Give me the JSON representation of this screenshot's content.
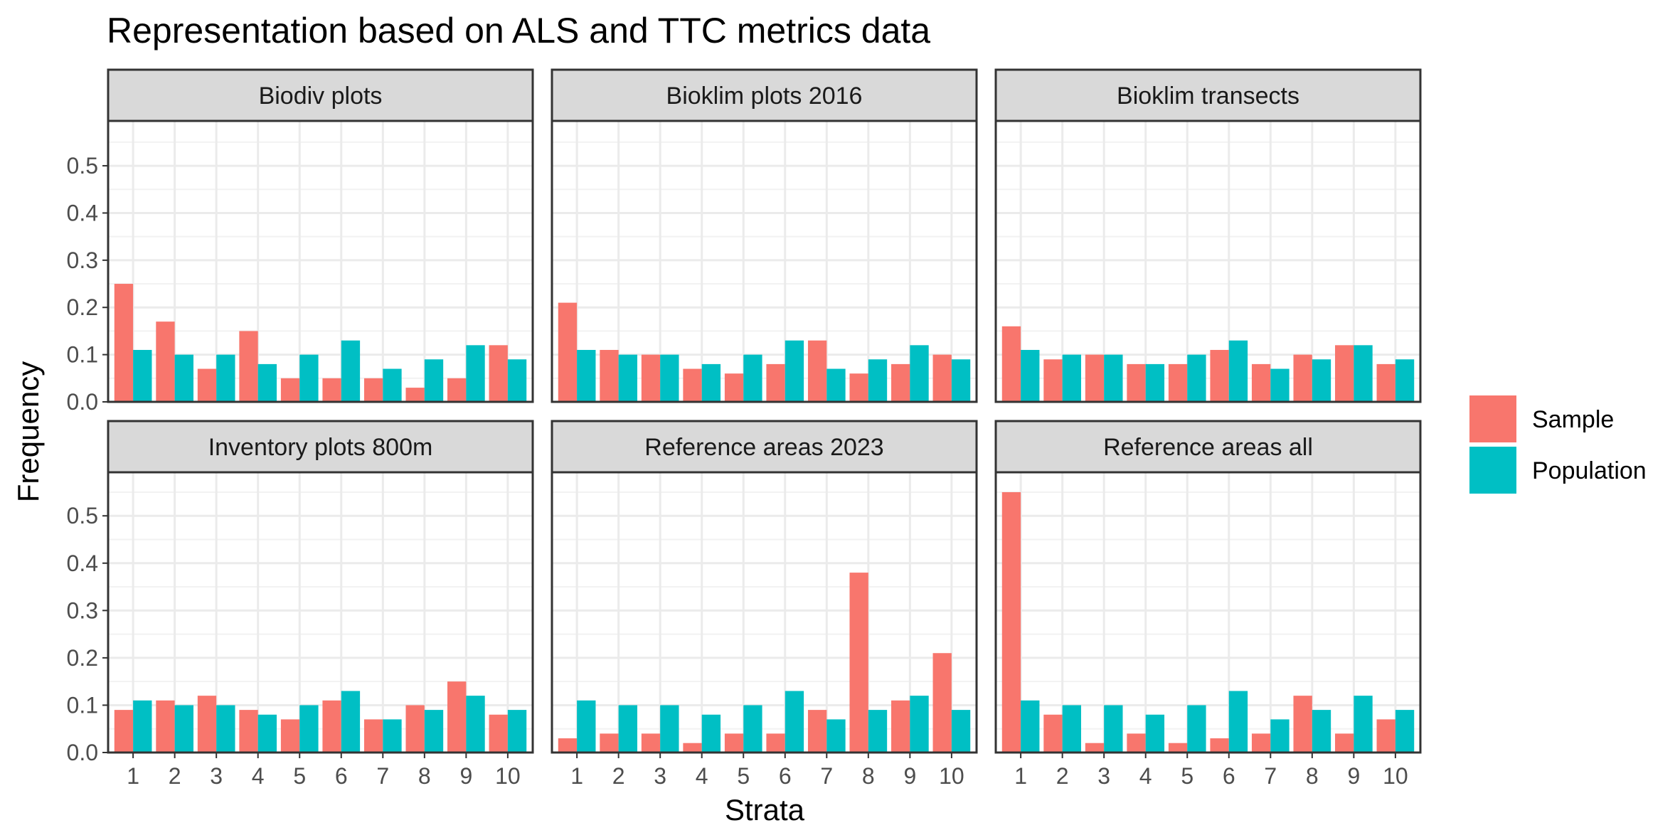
{
  "chart_data": {
    "type": "bar",
    "title": "Representation based on ALS and TTC metrics data",
    "xlabel": "Strata",
    "ylabel": "Frequency",
    "categories": [
      "1",
      "2",
      "3",
      "4",
      "5",
      "6",
      "7",
      "8",
      "9",
      "10"
    ],
    "y_ticks": [
      "0.0",
      "0.1",
      "0.2",
      "0.3",
      "0.4",
      "0.5"
    ],
    "ylim": [
      0,
      0.595
    ],
    "grid": true,
    "legend_position": "right",
    "legend": [
      {
        "name": "Sample",
        "color": "#F8766D"
      },
      {
        "name": "Population",
        "color": "#00BFC4"
      }
    ],
    "panels": [
      {
        "title": "Biodiv plots",
        "series": [
          {
            "name": "Sample",
            "values": [
              0.25,
              0.17,
              0.07,
              0.15,
              0.05,
              0.05,
              0.05,
              0.03,
              0.05,
              0.12
            ]
          },
          {
            "name": "Population",
            "values": [
              0.11,
              0.1,
              0.1,
              0.08,
              0.1,
              0.13,
              0.07,
              0.09,
              0.12,
              0.09
            ]
          }
        ]
      },
      {
        "title": "Bioklim plots 2016",
        "series": [
          {
            "name": "Sample",
            "values": [
              0.21,
              0.11,
              0.1,
              0.07,
              0.06,
              0.08,
              0.13,
              0.06,
              0.08,
              0.1
            ]
          },
          {
            "name": "Population",
            "values": [
              0.11,
              0.1,
              0.1,
              0.08,
              0.1,
              0.13,
              0.07,
              0.09,
              0.12,
              0.09
            ]
          }
        ]
      },
      {
        "title": "Bioklim transects",
        "series": [
          {
            "name": "Sample",
            "values": [
              0.16,
              0.09,
              0.1,
              0.08,
              0.08,
              0.11,
              0.08,
              0.1,
              0.12,
              0.08
            ]
          },
          {
            "name": "Population",
            "values": [
              0.11,
              0.1,
              0.1,
              0.08,
              0.1,
              0.13,
              0.07,
              0.09,
              0.12,
              0.09
            ]
          }
        ]
      },
      {
        "title": "Inventory plots 800m",
        "series": [
          {
            "name": "Sample",
            "values": [
              0.09,
              0.11,
              0.12,
              0.09,
              0.07,
              0.11,
              0.07,
              0.1,
              0.15,
              0.08
            ]
          },
          {
            "name": "Population",
            "values": [
              0.11,
              0.1,
              0.1,
              0.08,
              0.1,
              0.13,
              0.07,
              0.09,
              0.12,
              0.09
            ]
          }
        ]
      },
      {
        "title": "Reference areas 2023",
        "series": [
          {
            "name": "Sample",
            "values": [
              0.03,
              0.04,
              0.04,
              0.02,
              0.04,
              0.04,
              0.09,
              0.38,
              0.11,
              0.21
            ]
          },
          {
            "name": "Population",
            "values": [
              0.11,
              0.1,
              0.1,
              0.08,
              0.1,
              0.13,
              0.07,
              0.09,
              0.12,
              0.09
            ]
          }
        ]
      },
      {
        "title": "Reference areas all",
        "series": [
          {
            "name": "Sample",
            "values": [
              0.55,
              0.08,
              0.02,
              0.04,
              0.02,
              0.03,
              0.04,
              0.12,
              0.04,
              0.07
            ]
          },
          {
            "name": "Population",
            "values": [
              0.11,
              0.1,
              0.1,
              0.08,
              0.1,
              0.13,
              0.07,
              0.09,
              0.12,
              0.09
            ]
          }
        ]
      }
    ]
  }
}
